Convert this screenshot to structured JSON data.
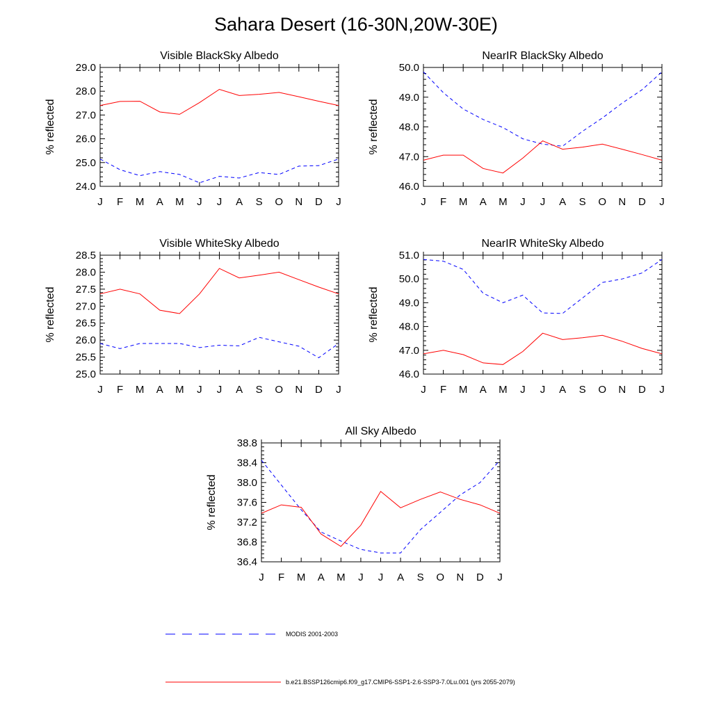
{
  "title": "Sahara Desert (16-30N,20W-30E)",
  "chart_data": [
    {
      "type": "line",
      "title": "Visible BlackSky Albedo",
      "ylabel": "% reflected",
      "categories": [
        "J",
        "F",
        "M",
        "A",
        "M",
        "J",
        "J",
        "A",
        "S",
        "O",
        "N",
        "D",
        "J"
      ],
      "yticks": [
        "24.0",
        "25.0",
        "26.0",
        "27.0",
        "28.0",
        "29.0"
      ],
      "ylim": [
        24.0,
        29.0
      ],
      "series": [
        {
          "name": "MODIS 2001-2003",
          "style": "dashed",
          "color": "#0000ff",
          "values": [
            25.15,
            24.7,
            24.45,
            24.62,
            24.5,
            24.15,
            24.42,
            24.35,
            24.58,
            24.5,
            24.85,
            24.87,
            25.15
          ]
        },
        {
          "name": "b.e21.BSSP126cmip6.f09_g17.CMIP6-SSP1-2.6-SSP3-7.0Lu.001 (yrs 2055-2079)",
          "style": "solid",
          "color": "#ff0000",
          "values": [
            27.4,
            27.57,
            27.58,
            27.13,
            27.03,
            27.52,
            28.08,
            27.82,
            27.87,
            27.95,
            27.77,
            27.58,
            27.4
          ]
        }
      ]
    },
    {
      "type": "line",
      "title": "NearIR BlackSky Albedo",
      "ylabel": "% reflected",
      "categories": [
        "J",
        "F",
        "M",
        "A",
        "M",
        "J",
        "J",
        "A",
        "S",
        "O",
        "N",
        "D",
        "J"
      ],
      "yticks": [
        "46.0",
        "47.0",
        "48.0",
        "49.0",
        "50.0"
      ],
      "ylim": [
        46.0,
        50.0
      ],
      "series": [
        {
          "name": "MODIS 2001-2003",
          "style": "dashed",
          "color": "#0000ff",
          "values": [
            49.85,
            49.15,
            48.6,
            48.25,
            47.98,
            47.6,
            47.42,
            47.35,
            47.85,
            48.3,
            48.8,
            49.25,
            49.85
          ]
        },
        {
          "name": "b.e21.BSSP126cmip6.f09_g17.CMIP6-SSP1-2.6-SSP3-7.0Lu.001 (yrs 2055-2079)",
          "style": "solid",
          "color": "#ff0000",
          "values": [
            46.88,
            47.05,
            47.05,
            46.6,
            46.45,
            46.95,
            47.53,
            47.25,
            47.32,
            47.42,
            47.25,
            47.07,
            46.88
          ]
        }
      ]
    },
    {
      "type": "line",
      "title": "Visible WhiteSky Albedo",
      "ylabel": "% reflected",
      "categories": [
        "J",
        "F",
        "M",
        "A",
        "M",
        "J",
        "J",
        "A",
        "S",
        "O",
        "N",
        "D",
        "J"
      ],
      "yticks": [
        "25.0",
        "25.5",
        "26.0",
        "26.5",
        "27.0",
        "27.5",
        "28.0",
        "28.5"
      ],
      "ylim": [
        25.0,
        28.5
      ],
      "series": [
        {
          "name": "MODIS 2001-2003",
          "style": "dashed",
          "color": "#0000ff",
          "values": [
            25.9,
            25.75,
            25.9,
            25.9,
            25.9,
            25.78,
            25.85,
            25.83,
            26.08,
            25.95,
            25.82,
            25.48,
            25.9
          ]
        },
        {
          "name": "b.e21.BSSP126cmip6.f09_g17.CMIP6-SSP1-2.6-SSP3-7.0Lu.001 (yrs 2055-2079)",
          "style": "solid",
          "color": "#ff0000",
          "values": [
            27.36,
            27.5,
            27.36,
            26.88,
            26.78,
            27.36,
            28.11,
            27.83,
            27.91,
            28.0,
            27.78,
            27.56,
            27.36
          ]
        }
      ]
    },
    {
      "type": "line",
      "title": "NearIR WhiteSky Albedo",
      "ylabel": "% reflected",
      "categories": [
        "J",
        "F",
        "M",
        "A",
        "M",
        "J",
        "J",
        "A",
        "S",
        "O",
        "N",
        "D",
        "J"
      ],
      "yticks": [
        "46.0",
        "47.0",
        "48.0",
        "49.0",
        "50.0",
        "51.0"
      ],
      "ylim": [
        46.0,
        51.0
      ],
      "series": [
        {
          "name": "MODIS 2001-2003",
          "style": "dashed",
          "color": "#0000ff",
          "values": [
            50.82,
            50.75,
            50.4,
            49.4,
            49.0,
            49.32,
            48.57,
            48.55,
            49.2,
            49.85,
            50.0,
            50.25,
            50.82
          ]
        },
        {
          "name": "b.e21.BSSP126cmip6.f09_g17.CMIP6-SSP1-2.6-SSP3-7.0Lu.001 (yrs 2055-2079)",
          "style": "solid",
          "color": "#ff0000",
          "values": [
            46.85,
            47.0,
            46.82,
            46.47,
            46.4,
            46.95,
            47.72,
            47.45,
            47.53,
            47.63,
            47.38,
            47.08,
            46.85
          ]
        }
      ]
    },
    {
      "type": "line",
      "title": "All Sky Albedo",
      "ylabel": "% reflected",
      "categories": [
        "J",
        "F",
        "M",
        "A",
        "M",
        "J",
        "J",
        "A",
        "S",
        "O",
        "N",
        "D",
        "J"
      ],
      "yticks": [
        "36.4",
        "36.8",
        "37.2",
        "37.6",
        "38.0",
        "38.4",
        "38.8"
      ],
      "ylim": [
        36.4,
        38.8
      ],
      "series": [
        {
          "name": "MODIS 2001-2003",
          "style": "dashed",
          "color": "#0000ff",
          "values": [
            38.45,
            37.95,
            37.45,
            37.0,
            36.82,
            36.65,
            36.58,
            36.58,
            37.05,
            37.4,
            37.75,
            38.0,
            38.45
          ]
        },
        {
          "name": "b.e21.BSSP126cmip6.f09_g17.CMIP6-SSP1-2.6-SSP3-7.0Lu.001 (yrs 2055-2079)",
          "style": "solid",
          "color": "#ff0000",
          "values": [
            37.38,
            37.55,
            37.5,
            36.96,
            36.71,
            37.14,
            37.82,
            37.49,
            37.66,
            37.81,
            37.66,
            37.55,
            37.38
          ]
        }
      ]
    }
  ],
  "legend": {
    "items": [
      {
        "label": "MODIS 2001-2003",
        "style": "dashed",
        "color": "#0000ff"
      },
      {
        "label": "b.e21.BSSP126cmip6.f09_g17.CMIP6-SSP1-2.6-SSP3-7.0Lu.001 (yrs 2055-2079)",
        "style": "solid",
        "color": "#ff0000"
      }
    ]
  }
}
